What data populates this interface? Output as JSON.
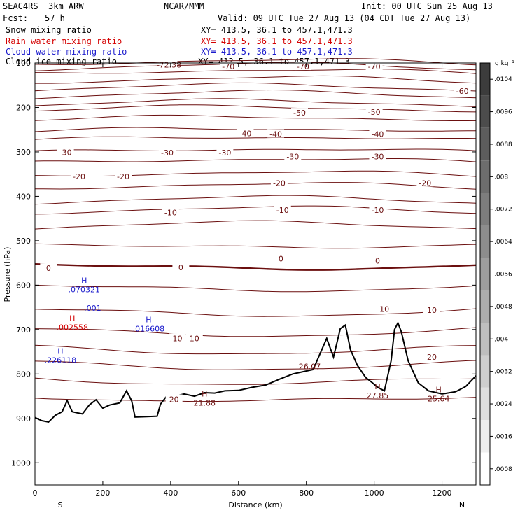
{
  "header": {
    "model": "SEAC4RS  3km ARW",
    "org": "NCAR/MMM",
    "init": "Init: 00 UTC Sun 25 Aug 13",
    "fcst_label": "Fcst:",
    "fcst_value": "57 h",
    "valid": "Valid: 09 UTC Tue 27 Aug 13 (04 CDT Tue 27 Aug 13)",
    "fields": [
      {
        "name": "Snow mixing ratio",
        "xy": "XY= 413.5, 36.1 to 457.1,471.3",
        "color": "#000000"
      },
      {
        "name": "Rain water mixing ratio",
        "xy": "XY= 413.5, 36.1 to 457.1,471.3",
        "color": "#d40000"
      },
      {
        "name": "Cloud water mixing ratio",
        "xy": "XY= 413.5, 36.1 to 457.1,471.3",
        "color": "#1a1acc"
      },
      {
        "name": "Cloud ice mixing ratio",
        "xy": "XY= 413.5, 36.1 to 457.1,471.3",
        "color": "#000000"
      }
    ]
  },
  "chart_data": {
    "type": "cross-section contour",
    "xlabel": "Distance (km)",
    "ylabel": "Pressure (hPa)",
    "x_ticks": [
      0,
      200,
      400,
      600,
      800,
      1000,
      1200
    ],
    "y_ticks": [
      100,
      200,
      300,
      400,
      500,
      600,
      700,
      800,
      900,
      1000
    ],
    "xlim": [
      0,
      1300
    ],
    "ylim": [
      1050,
      100
    ],
    "endpoints": {
      "left": "S",
      "right": "N"
    },
    "colorbar": {
      "unit": "g kg⁻¹",
      "ticks": [
        ".0104",
        ".0096",
        ".0088",
        ".008",
        ".0072",
        ".0064",
        ".0056",
        ".0048",
        ".004",
        ".0032",
        ".0024",
        ".0016",
        ".0008"
      ]
    },
    "temperature_contours_C": [
      -70,
      -60,
      -50,
      -40,
      -30,
      -20,
      -10,
      0,
      10,
      20
    ],
    "contour_labels": [
      {
        "text": "-72.38",
        "x": 395,
        "p": 104
      },
      {
        "text": "-70",
        "x": 570,
        "p": 108
      },
      {
        "text": "-70",
        "x": 790,
        "p": 108
      },
      {
        "text": "-70",
        "x": 1000,
        "p": 108
      },
      {
        "text": "-60",
        "x": 1260,
        "p": 163
      },
      {
        "text": "-50",
        "x": 780,
        "p": 212
      },
      {
        "text": "-50",
        "x": 1000,
        "p": 210
      },
      {
        "text": "-40",
        "x": 620,
        "p": 258
      },
      {
        "text": "-40",
        "x": 710,
        "p": 260
      },
      {
        "text": "-40",
        "x": 1010,
        "p": 260
      },
      {
        "text": "-30",
        "x": 90,
        "p": 301
      },
      {
        "text": "-30",
        "x": 390,
        "p": 302
      },
      {
        "text": "-30",
        "x": 560,
        "p": 302
      },
      {
        "text": "-30",
        "x": 760,
        "p": 310
      },
      {
        "text": "-30",
        "x": 1010,
        "p": 310
      },
      {
        "text": "-20",
        "x": 130,
        "p": 355
      },
      {
        "text": "-20",
        "x": 260,
        "p": 355
      },
      {
        "text": "-20",
        "x": 720,
        "p": 370
      },
      {
        "text": "-20",
        "x": 1150,
        "p": 370
      },
      {
        "text": "-10",
        "x": 400,
        "p": 436
      },
      {
        "text": "-10",
        "x": 730,
        "p": 431
      },
      {
        "text": "-10",
        "x": 1010,
        "p": 431
      },
      {
        "text": "0",
        "x": 40,
        "p": 562
      },
      {
        "text": "0",
        "x": 430,
        "p": 560
      },
      {
        "text": "0",
        "x": 725,
        "p": 540
      },
      {
        "text": "0",
        "x": 1010,
        "p": 545
      },
      {
        "text": "10",
        "x": 1030,
        "p": 654
      },
      {
        "text": "10",
        "x": 1170,
        "p": 656
      },
      {
        "text": "10",
        "x": 420,
        "p": 720
      },
      {
        "text": "10",
        "x": 470,
        "p": 720
      },
      {
        "text": "20",
        "x": 1170,
        "p": 762
      },
      {
        "text": "20",
        "x": 410,
        "p": 857
      }
    ],
    "maxima": [
      {
        "label": "H",
        "value": ".070321",
        "x": 145,
        "p": 608,
        "color": "#1a1acc"
      },
      {
        "label": "",
        "value": ".001",
        "x": 170,
        "p": 650,
        "color": "#1a1acc"
      },
      {
        "label": "H",
        "value": ".002558",
        "x": 110,
        "p": 693,
        "color": "#d40000"
      },
      {
        "label": "H",
        "value": ".016608",
        "x": 335,
        "p": 696,
        "color": "#1a1acc"
      },
      {
        "label": "H",
        "value": ".226118",
        "x": 75,
        "p": 767,
        "color": "#1a1acc"
      },
      {
        "label": "H",
        "value": "21.88",
        "x": 500,
        "p": 863,
        "color": "#6b0f0f"
      },
      {
        "label": "",
        "value": "26.07",
        "x": 810,
        "p": 781,
        "color": "#6b0f0f"
      },
      {
        "label": "H",
        "value": "27.85",
        "x": 1010,
        "p": 847,
        "color": "#6b0f0f"
      },
      {
        "label": "H",
        "value": "25.64",
        "x": 1190,
        "p": 854,
        "color": "#6b0f0f"
      }
    ],
    "terrain_pressure": [
      [
        0,
        898
      ],
      [
        20,
        905
      ],
      [
        40,
        908
      ],
      [
        60,
        893
      ],
      [
        80,
        885
      ],
      [
        95,
        860
      ],
      [
        110,
        885
      ],
      [
        140,
        890
      ],
      [
        160,
        870
      ],
      [
        180,
        858
      ],
      [
        200,
        877
      ],
      [
        220,
        870
      ],
      [
        250,
        865
      ],
      [
        270,
        838
      ],
      [
        285,
        860
      ],
      [
        295,
        897
      ],
      [
        330,
        896
      ],
      [
        360,
        895
      ],
      [
        370,
        868
      ],
      [
        390,
        848
      ],
      [
        410,
        850
      ],
      [
        440,
        845
      ],
      [
        470,
        850
      ],
      [
        500,
        842
      ],
      [
        530,
        843
      ],
      [
        560,
        838
      ],
      [
        600,
        837
      ],
      [
        640,
        830
      ],
      [
        680,
        825
      ],
      [
        720,
        812
      ],
      [
        760,
        800
      ],
      [
        790,
        795
      ],
      [
        820,
        790
      ],
      [
        860,
        720
      ],
      [
        880,
        762
      ],
      [
        900,
        698
      ],
      [
        915,
        690
      ],
      [
        930,
        745
      ],
      [
        950,
        780
      ],
      [
        975,
        808
      ],
      [
        995,
        820
      ],
      [
        1010,
        830
      ],
      [
        1030,
        838
      ],
      [
        1050,
        770
      ],
      [
        1060,
        700
      ],
      [
        1070,
        685
      ],
      [
        1080,
        705
      ],
      [
        1100,
        770
      ],
      [
        1130,
        820
      ],
      [
        1160,
        838
      ],
      [
        1200,
        845
      ],
      [
        1240,
        840
      ],
      [
        1270,
        828
      ],
      [
        1300,
        804
      ]
    ]
  }
}
